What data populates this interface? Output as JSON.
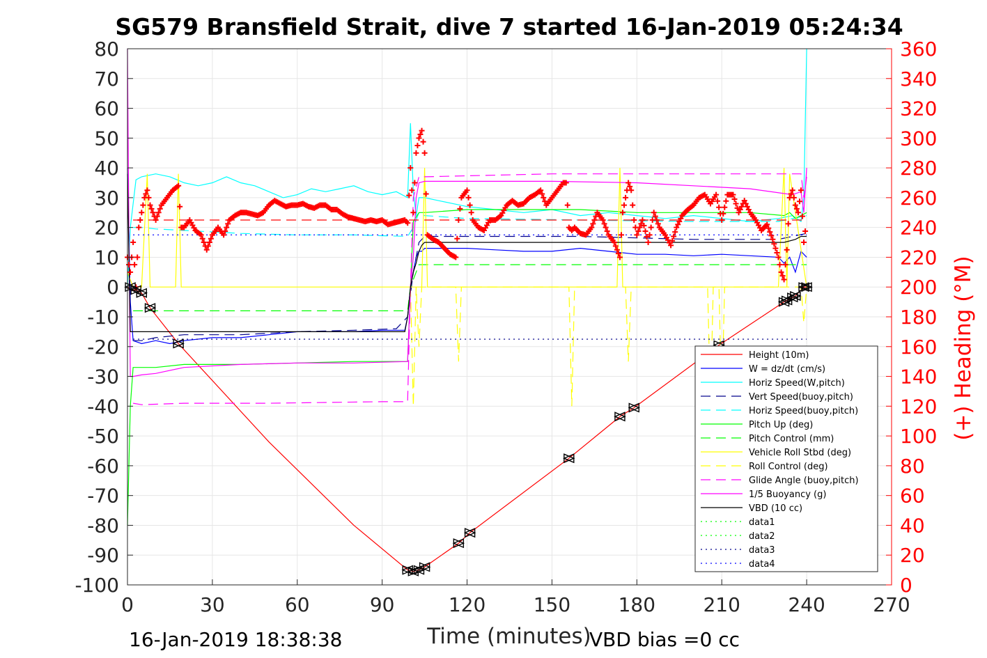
{
  "chart_data": {
    "type": "line",
    "title": "SG579 Bransfield Strait, dive 7 started 16-Jan-2019 05:24:34",
    "xlabel": "Time (minutes)",
    "ylabel_right": "(+) Heading (°M)",
    "xlim": [
      0,
      270
    ],
    "ylim_left": [
      -100,
      80
    ],
    "ylim_right": [
      0,
      360
    ],
    "x_ticks": [
      "0",
      "30",
      "60",
      "90",
      "120",
      "150",
      "180",
      "210",
      "240",
      "270"
    ],
    "y_left_ticks": [
      "80",
      "70",
      "60",
      "50",
      "40",
      "30",
      "20",
      "10",
      "0",
      "-10",
      "-20",
      "-30",
      "-40",
      "-50",
      "-60",
      "-70",
      "-80",
      "-90",
      "-100"
    ],
    "y_right_ticks": [
      "360",
      "340",
      "320",
      "300",
      "280",
      "260",
      "240",
      "220",
      "200",
      "180",
      "160",
      "140",
      "120",
      "100",
      "80",
      "60",
      "40",
      "20",
      "0"
    ],
    "grid": true,
    "legend_position": "lower-right",
    "footer_left": "16-Jan-2019 18:38:38",
    "footer_right": "VBD bias =0 cc",
    "colors": {
      "red": "#ff0000",
      "blue": "#0000ff",
      "cyan": "#00ffff",
      "darkblue": "#00008b",
      "green": "#00ff00",
      "yellow": "#ffff00",
      "magenta": "#ff00ff",
      "black": "#000000"
    },
    "series": [
      {
        "name": "Height (10m)",
        "color": "#ff0000",
        "style": "solid",
        "axis": "left",
        "x": [
          0,
          1,
          3,
          5,
          8,
          18,
          50,
          80,
          99,
          101,
          103,
          105,
          117,
          121,
          156,
          174,
          179,
          209,
          232,
          233,
          235,
          236,
          239,
          240
        ],
        "y": [
          0,
          -1,
          -1,
          -2,
          -7,
          -19,
          -52,
          -80,
          -95,
          -95.5,
          -95,
          -94,
          -86,
          -82.5,
          -57.5,
          -43.5,
          -40.5,
          -19.5,
          -5,
          -4.5,
          -3.5,
          -3,
          0,
          0
        ]
      },
      {
        "name": "W = dz/dt (cm/s)",
        "color": "#0000ff",
        "style": "solid",
        "axis": "left",
        "x": [
          0,
          1,
          2,
          5,
          10,
          15,
          20,
          30,
          40,
          50,
          60,
          70,
          80,
          90,
          98,
          99,
          100,
          101,
          102,
          103,
          104,
          105,
          110,
          120,
          130,
          140,
          150,
          160,
          170,
          180,
          190,
          200,
          210,
          220,
          230,
          232,
          234,
          236,
          238,
          240
        ],
        "y": [
          40,
          -5,
          -18,
          -19,
          -18,
          -19,
          -18,
          -17,
          -17,
          -16,
          -15,
          -15,
          -15,
          -14.5,
          -14.5,
          -10,
          0,
          5,
          10,
          12,
          12,
          13,
          13,
          13,
          12.5,
          12,
          12,
          13,
          12,
          11,
          11,
          10.5,
          11,
          10.5,
          10,
          8,
          10,
          5,
          12,
          10
        ]
      },
      {
        "name": "Horiz Speed(W,pitch)",
        "color": "#00ffff",
        "style": "solid",
        "axis": "left",
        "x": [
          0,
          1,
          3,
          5,
          10,
          15,
          20,
          25,
          30,
          35,
          40,
          45,
          50,
          55,
          60,
          65,
          70,
          75,
          80,
          85,
          90,
          95,
          99,
          100,
          101,
          102,
          103,
          105,
          110,
          120,
          130,
          140,
          150,
          160,
          170,
          180,
          190,
          200,
          210,
          220,
          230,
          235,
          238,
          239,
          240
        ],
        "y": [
          0,
          20,
          36,
          37,
          38,
          37,
          35,
          34,
          35,
          37,
          35,
          34,
          32,
          30,
          31,
          33,
          32,
          33,
          34,
          32,
          31,
          32,
          30,
          55,
          32,
          24,
          30,
          30,
          29,
          27,
          26,
          25,
          26,
          24,
          25,
          24,
          23,
          24,
          23,
          22,
          23,
          24,
          22,
          30,
          80
        ]
      },
      {
        "name": "Vert Speed(buoy,pitch)",
        "color": "#00008b",
        "style": "dashed",
        "axis": "left",
        "x": [
          2,
          5,
          10,
          20,
          40,
          60,
          80,
          95,
          99,
          101,
          103,
          105,
          120,
          160,
          200,
          230,
          240
        ],
        "y": [
          -18,
          -18,
          -17,
          -16,
          -16,
          -15,
          -14.5,
          -14,
          -10,
          5,
          15,
          17,
          17,
          17,
          16,
          16,
          18
        ]
      },
      {
        "name": "Horiz Speed(buoy,pitch)",
        "color": "#00ffff",
        "style": "dashed",
        "axis": "left",
        "x": [
          2,
          5,
          10,
          20,
          40,
          60,
          80,
          99,
          101,
          103,
          105,
          120,
          160,
          200,
          230,
          240
        ],
        "y": [
          20,
          20,
          19.5,
          19,
          18,
          17.5,
          17.5,
          17,
          20,
          25,
          24,
          23,
          22.5,
          22,
          22,
          24
        ]
      },
      {
        "name": "Pitch Up (deg)",
        "color": "#00ff00",
        "style": "solid",
        "axis": "left",
        "x": [
          0,
          1,
          2,
          3,
          5,
          10,
          20,
          40,
          60,
          80,
          99,
          100,
          101,
          103,
          105,
          120,
          140,
          160,
          180,
          200,
          220,
          232,
          234,
          236,
          240
        ],
        "y": [
          -80,
          -40,
          -27,
          -27,
          -27,
          -27,
          -26,
          -26,
          -25.5,
          -25,
          -25,
          0,
          22,
          25,
          25,
          26,
          26,
          26,
          25,
          25,
          25,
          24,
          25,
          23,
          25
        ]
      },
      {
        "name": "Pitch Control (mm)",
        "color": "#00ff00",
        "style": "dashed",
        "axis": "left",
        "x": [
          2,
          10,
          50,
          99,
          100,
          103,
          240
        ],
        "y": [
          -8,
          -8,
          -8,
          -8,
          0,
          7.5,
          7.5
        ]
      },
      {
        "name": "Vehicle Roll Stbd (deg)",
        "color": "#ffff00",
        "style": "solid",
        "axis": "left",
        "x": [
          0,
          2,
          5,
          7,
          8,
          9,
          17,
          18,
          19,
          30,
          60,
          90,
          99,
          100,
          101,
          104,
          105,
          106,
          120,
          150,
          173,
          174,
          175,
          176,
          210,
          230,
          232,
          233,
          234,
          240
        ],
        "y": [
          5,
          0,
          0,
          38,
          0,
          0,
          0,
          38,
          0,
          0,
          0,
          0,
          0,
          0,
          0,
          0,
          40,
          0,
          0,
          0,
          0,
          40,
          0,
          0,
          0,
          0,
          40,
          0,
          38,
          0
        ]
      },
      {
        "name": "Roll Control (deg)",
        "color": "#ffff00",
        "style": "dashed",
        "axis": "left",
        "x": [
          100,
          101,
          102,
          103,
          104,
          110,
          116,
          117,
          118,
          130,
          150,
          156,
          157,
          158,
          176,
          177,
          178,
          179,
          205,
          206,
          207,
          209,
          210,
          211,
          230,
          238,
          239,
          240
        ],
        "y": [
          0,
          -40,
          0,
          -20,
          0,
          0,
          0,
          -25,
          0,
          0,
          0,
          0,
          -40,
          0,
          0,
          -25,
          0,
          0,
          0,
          -40,
          0,
          0,
          -40,
          0,
          0,
          0,
          -12,
          0
        ]
      },
      {
        "name": "Glide Angle (buoy,pitch)",
        "color": "#ff00ff",
        "style": "dashed",
        "axis": "left",
        "x": [
          2,
          5,
          20,
          50,
          90,
          99,
          100,
          101,
          103,
          105,
          150,
          200,
          238,
          239,
          240
        ],
        "y": [
          -39,
          -39.5,
          -39,
          -39,
          -38.5,
          -38.5,
          0,
          30,
          37,
          37,
          38,
          38,
          38,
          30,
          37
        ]
      },
      {
        "name": "1/5 Buoyancy (g)",
        "color": "#ff00ff",
        "style": "solid",
        "axis": "left",
        "x": [
          0,
          0.5,
          1,
          2,
          5,
          10,
          20,
          40,
          60,
          80,
          99,
          100,
          101,
          102,
          103,
          105,
          120,
          150,
          180,
          200,
          220,
          235,
          238,
          239,
          240
        ],
        "y": [
          80,
          20,
          -30,
          -30,
          -29.5,
          -29,
          -27,
          -26,
          -25.5,
          -25.5,
          -25,
          0,
          10,
          30,
          35,
          35.5,
          35.5,
          35.5,
          35,
          34,
          33,
          31,
          32,
          25,
          40
        ]
      },
      {
        "name": "VBD (10 cc)",
        "color": "#000000",
        "style": "solid",
        "axis": "left",
        "x": [
          0,
          1,
          2,
          5,
          30,
          60,
          98,
          99,
          100,
          101,
          102,
          103,
          104,
          105,
          150,
          200,
          230,
          232,
          236,
          238,
          240
        ],
        "y": [
          38,
          -15,
          -15,
          -15,
          -15,
          -15,
          -15,
          -10,
          0,
          5,
          8,
          12,
          14,
          15,
          15,
          15,
          15,
          15,
          16,
          17,
          17
        ]
      },
      {
        "name": "data1",
        "color": "#00ff00",
        "style": "dotted",
        "axis": "left",
        "x": [],
        "y": []
      },
      {
        "name": "data2",
        "color": "#00ff00",
        "style": "dotted",
        "axis": "left",
        "x": [],
        "y": []
      },
      {
        "name": "data3",
        "color": "#00008b",
        "style": "dotted",
        "axis": "left",
        "x": [
          2,
          100,
          240
        ],
        "y": [
          -17.5,
          -17.5,
          -17.5
        ]
      },
      {
        "name": "data4",
        "color": "#0000ff",
        "style": "dotted",
        "axis": "left",
        "x": [
          2,
          100,
          240
        ],
        "y": [
          17.5,
          17.5,
          17.5
        ]
      },
      {
        "name": "",
        "color": "#ff0000",
        "style": "dashed",
        "axis": "left",
        "x": [
          2,
          100,
          240
        ],
        "y": [
          22.5,
          22.5,
          22.5
        ]
      },
      {
        "name": "Heading",
        "color": "#ff0000",
        "style": "plus-markers",
        "axis": "right",
        "x": [
          0,
          1,
          2,
          3,
          4,
          5,
          6,
          7,
          8,
          9,
          10,
          12,
          14,
          16,
          18,
          19,
          20,
          22,
          24,
          26,
          28,
          30,
          32,
          34,
          36,
          38,
          40,
          42,
          44,
          46,
          48,
          50,
          52,
          54,
          56,
          58,
          60,
          62,
          64,
          66,
          68,
          70,
          72,
          74,
          76,
          78,
          80,
          82,
          84,
          86,
          88,
          90,
          92,
          94,
          96,
          98,
          99,
          100,
          101,
          102,
          103,
          104,
          105,
          106,
          108,
          110,
          112,
          114,
          116,
          117,
          118,
          120,
          122,
          124,
          126,
          128,
          130,
          132,
          134,
          136,
          138,
          140,
          142,
          144,
          146,
          148,
          150,
          152,
          154,
          155,
          156,
          157,
          158,
          160,
          162,
          164,
          166,
          168,
          170,
          172,
          174,
          175,
          176,
          177,
          178,
          179,
          180,
          182,
          184,
          186,
          188,
          190,
          192,
          194,
          196,
          198,
          200,
          202,
          204,
          206,
          208,
          210,
          212,
          214,
          216,
          218,
          220,
          222,
          224,
          226,
          228,
          230,
          231,
          232,
          233,
          234,
          235,
          236,
          237,
          238,
          239,
          240
        ],
        "y": [
          220,
          210,
          230,
          200,
          240,
          250,
          260,
          265,
          255,
          250,
          245,
          255,
          260,
          265,
          268,
          240,
          240,
          245,
          238,
          235,
          225,
          235,
          240,
          235,
          245,
          248,
          250,
          250,
          249,
          248,
          250,
          255,
          258,
          256,
          254,
          255,
          255,
          256,
          254,
          253,
          255,
          255,
          252,
          252,
          249,
          247,
          246,
          245,
          244,
          245,
          244,
          245,
          242,
          243,
          244,
          245,
          243,
          280,
          250,
          290,
          300,
          305,
          290,
          235,
          232,
          230,
          226,
          222,
          220,
          245,
          260,
          265,
          245,
          240,
          238,
          245,
          245,
          248,
          255,
          258,
          255,
          256,
          260,
          262,
          265,
          255,
          260,
          265,
          270,
          270,
          240,
          238,
          240,
          236,
          235,
          240,
          250,
          245,
          235,
          230,
          220,
          250,
          260,
          270,
          265,
          245,
          235,
          245,
          230,
          250,
          240,
          235,
          228,
          240,
          248,
          252,
          255,
          260,
          262,
          256,
          262,
          245,
          262,
          262,
          250,
          258,
          250,
          245,
          238,
          242,
          232,
          220,
          210,
          205,
          225,
          260,
          265,
          255,
          250,
          265,
          230,
          245
        ]
      },
      {
        "name": "",
        "color": "#000000",
        "style": "triangle-markers",
        "axis": "left",
        "x": [
          1,
          3,
          5,
          8,
          18,
          99,
          101,
          103,
          105,
          117,
          121,
          156,
          174,
          179,
          209,
          232,
          233,
          235,
          236,
          239,
          240
        ],
        "y": [
          0,
          -1,
          -2,
          -7,
          -19,
          -95,
          -95.5,
          -95,
          -94,
          -86,
          -82.5,
          -57.5,
          -43.5,
          -40.5,
          -19.5,
          -5,
          -4.5,
          -3.5,
          -3,
          0,
          0
        ]
      }
    ]
  }
}
